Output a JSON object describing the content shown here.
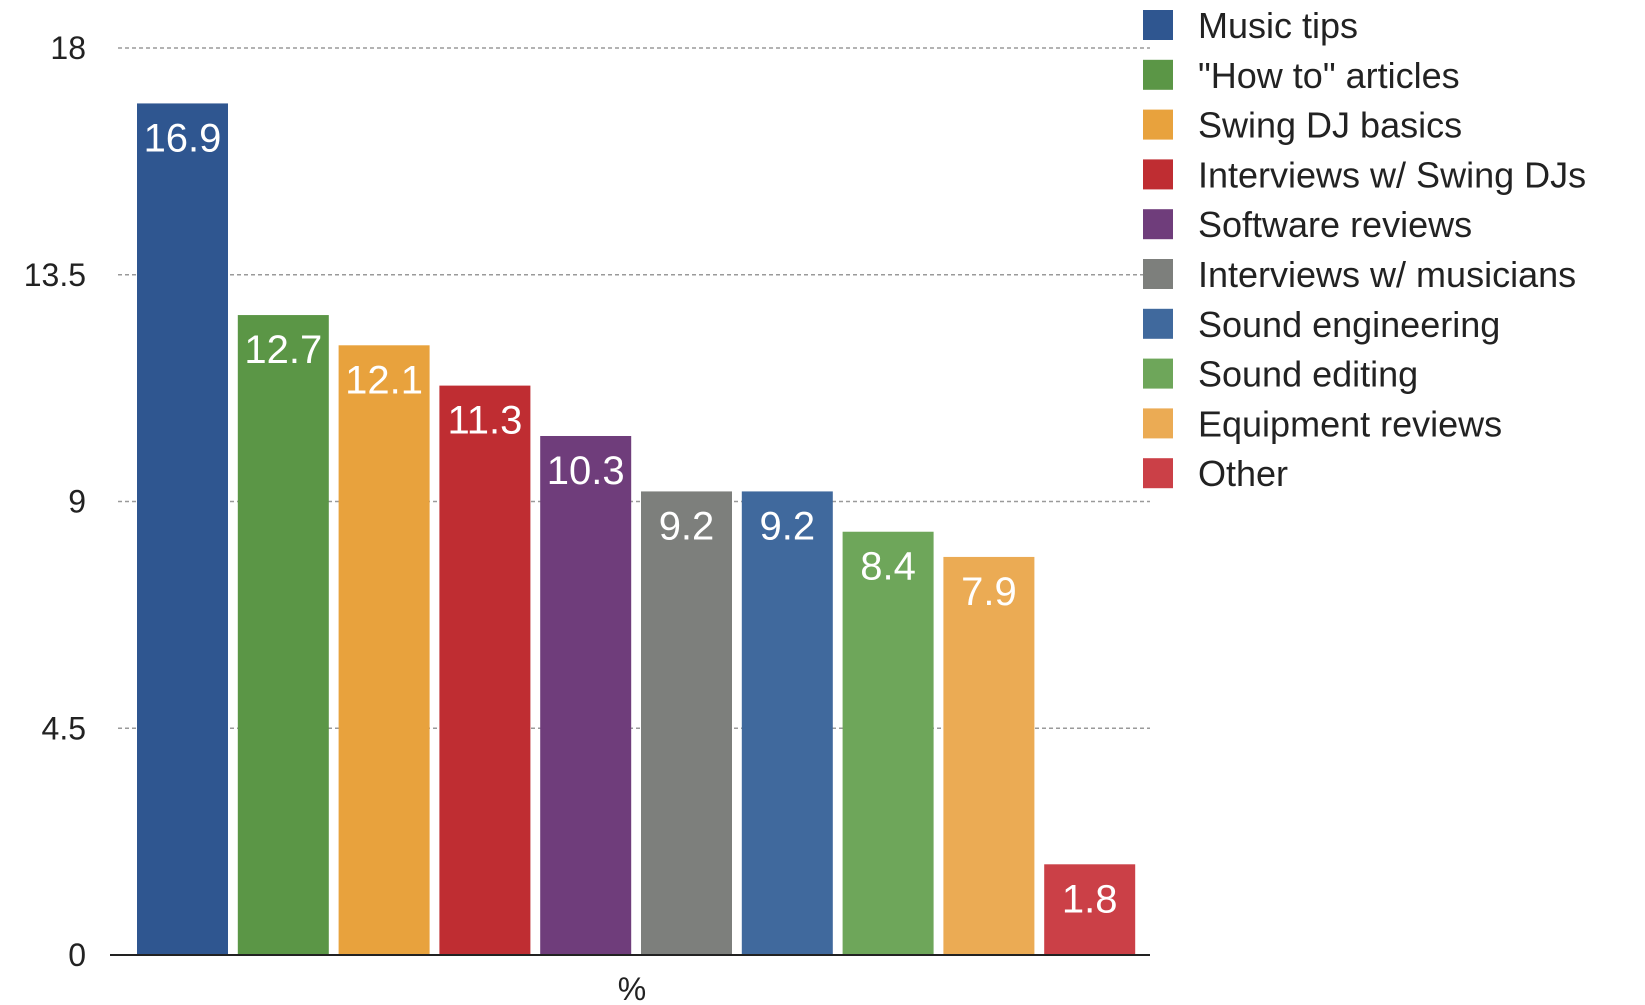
{
  "chart_data": {
    "type": "bar",
    "xlabel": "%",
    "ylabel": "",
    "ylim": [
      0,
      18
    ],
    "yticks": [
      0,
      4.5,
      9,
      13.5,
      18
    ],
    "ytick_labels": [
      "0",
      "4.5",
      "9",
      "13.5",
      "18"
    ],
    "grid": true,
    "legend_position": "top-right",
    "series": [
      {
        "name": "Music tips",
        "value": 16.9,
        "label": "16.9",
        "color": "#2f5690"
      },
      {
        "name": "\"How to\" articles",
        "value": 12.7,
        "label": "12.7",
        "color": "#5b9646"
      },
      {
        "name": "Swing DJ basics",
        "value": 12.1,
        "label": "12.1",
        "color": "#e8a23d"
      },
      {
        "name": "Interviews w/ Swing DJs",
        "value": 11.3,
        "label": "11.3",
        "color": "#bf2d32"
      },
      {
        "name": "Software reviews",
        "value": 10.3,
        "label": "10.3",
        "color": "#6f3d7b"
      },
      {
        "name": "Interviews w/ musicians",
        "value": 9.2,
        "label": "9.2",
        "color": "#7d7f7c"
      },
      {
        "name": "Sound engineering",
        "value": 9.2,
        "label": "9.2",
        "color": "#40699d"
      },
      {
        "name": "Sound editing",
        "value": 8.4,
        "label": "8.4",
        "color": "#6ea65a"
      },
      {
        "name": "Equipment reviews",
        "value": 7.9,
        "label": "7.9",
        "color": "#ebab54"
      },
      {
        "name": "Other",
        "value": 1.8,
        "label": "1.8",
        "color": "#cb4047"
      }
    ]
  }
}
